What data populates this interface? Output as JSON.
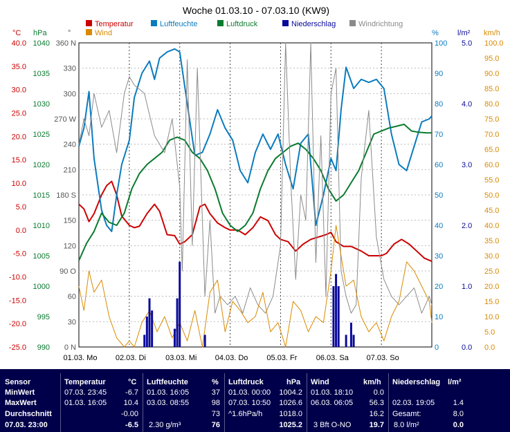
{
  "title": "Woche 01.03.10 - 07.03.10 (KW9)",
  "legend": [
    {
      "label": "Temperatur",
      "color": "#cc0000"
    },
    {
      "label": "Luftfeuchte",
      "color": "#0a7bbd"
    },
    {
      "label": "Luftdruck",
      "color": "#0a7a2e"
    },
    {
      "label": "Niederschlag",
      "color": "#0a0a99"
    },
    {
      "label": "Windrichtung",
      "color": "#8a8a8a"
    },
    {
      "label": "Wind",
      "color": "#d98a00"
    }
  ],
  "axis_units": {
    "temp": "°C",
    "pressure": "hPa",
    "direction": "°",
    "humidity": "%",
    "rain": "l/m²",
    "wind": "km/h"
  },
  "chart_data": {
    "type": "line",
    "title": "Woche 01.03.10 - 07.03.10 (KW9)",
    "x_ticks": [
      "01.03. Mo",
      "02.03. Di",
      "03.03. Mi",
      "04.03. Do",
      "05.03. Fr",
      "06.03. Sa",
      "07.03. So"
    ],
    "axes": {
      "temp": {
        "ticks": [
          "40.0",
          "35.0",
          "30.0",
          "25.0",
          "20.0",
          "15.0",
          "10.0",
          "5.0",
          "0.0",
          "-5.0",
          "-10.0",
          "-15.0",
          "-20.0",
          "-25.0"
        ],
        "ylim": [
          -25,
          40
        ]
      },
      "pressure": {
        "ticks": [
          "1040",
          "1035",
          "1030",
          "1025",
          "1020",
          "1015",
          "1010",
          "1005",
          "1000",
          "995",
          "990"
        ],
        "ylim": [
          990,
          1040
        ]
      },
      "direction": {
        "ticks": [
          "360 N",
          "330",
          "300",
          "270 W",
          "240",
          "210",
          "180 S",
          "150",
          "120",
          "90 O",
          "60",
          "30",
          "0 N"
        ],
        "ylim": [
          0,
          360
        ]
      },
      "humidity": {
        "ticks": [
          "100",
          "90",
          "80",
          "70",
          "60",
          "50",
          "40",
          "30",
          "20",
          "10",
          "0"
        ],
        "ylim": [
          0,
          100
        ]
      },
      "rain": {
        "ticks": [
          "5.0",
          "4.0",
          "3.0",
          "2.0",
          "1.0",
          "0.0"
        ],
        "ylim": [
          0,
          5
        ]
      },
      "wind": {
        "ticks": [
          "100.0",
          "95.0",
          "90.0",
          "85.0",
          "80.0",
          "75.0",
          "70.0",
          "65.0",
          "60.0",
          "55.0",
          "50.0",
          "45.0",
          "40.0",
          "35.0",
          "30.0",
          "25.0",
          "20.0",
          "15.0",
          "10.0",
          "5.0",
          "0.0"
        ],
        "ylim": [
          0,
          100
        ]
      }
    },
    "series": [
      {
        "name": "Temperatur",
        "axis": "temp",
        "color": "#cc0000",
        "x": [
          0,
          0.1,
          0.2,
          0.3,
          0.45,
          0.55,
          0.65,
          0.75,
          0.85,
          1.0,
          1.1,
          1.2,
          1.35,
          1.5,
          1.6,
          1.75,
          1.9,
          2.0,
          2.1,
          2.25,
          2.4,
          2.5,
          2.6,
          2.75,
          2.9,
          3.0,
          3.15,
          3.3,
          3.45,
          3.6,
          3.75,
          3.9,
          4.0,
          4.15,
          4.3,
          4.45,
          4.6,
          4.75,
          4.9,
          5.0,
          5.1,
          5.25,
          5.4,
          5.5,
          5.6,
          5.75,
          5.9,
          6.0,
          6.1,
          6.25,
          6.4,
          6.55,
          6.7,
          6.85,
          7.0
        ],
        "y": [
          5.5,
          4.5,
          1.8,
          3.5,
          7.5,
          9.5,
          10.4,
          7.5,
          3.0,
          1.0,
          0.5,
          0.8,
          3.5,
          5.5,
          4.0,
          -1.0,
          -1.2,
          -3.0,
          -2.5,
          -1.0,
          5.0,
          5.5,
          3.5,
          1.5,
          0.5,
          0.0,
          0.0,
          -1.0,
          0.5,
          2.8,
          2.0,
          -1.0,
          -2.0,
          -2.5,
          -4.5,
          -3.0,
          -2.0,
          -1.5,
          -1.0,
          -0.5,
          -2.5,
          -3.5,
          -3.5,
          -4.0,
          -4.5,
          -5.5,
          -5.5,
          -5.5,
          -5.0,
          -3.0,
          -2.0,
          -3.0,
          -4.5,
          -6.0,
          -6.7
        ]
      },
      {
        "name": "Luftfeuchte",
        "axis": "humidity",
        "color": "#0a7bbd",
        "x": [
          0,
          0.1,
          0.2,
          0.3,
          0.45,
          0.55,
          0.65,
          0.75,
          0.85,
          1.0,
          1.1,
          1.25,
          1.4,
          1.5,
          1.6,
          1.75,
          1.9,
          2.0,
          2.15,
          2.3,
          2.45,
          2.6,
          2.75,
          2.9,
          3.05,
          3.2,
          3.35,
          3.5,
          3.65,
          3.8,
          3.95,
          4.1,
          4.25,
          4.4,
          4.55,
          4.7,
          4.85,
          5.0,
          5.1,
          5.2,
          5.3,
          5.45,
          5.6,
          5.75,
          5.9,
          6.05,
          6.2,
          6.35,
          6.5,
          6.65,
          6.8,
          6.95,
          7.0
        ],
        "y": [
          66,
          72,
          84,
          62,
          45,
          40,
          38,
          50,
          60,
          68,
          82,
          90,
          94,
          88,
          95,
          97,
          98,
          97,
          80,
          63,
          64,
          70,
          78,
          72,
          68,
          58,
          54,
          64,
          70,
          65,
          70,
          60,
          52,
          67,
          70,
          40,
          50,
          62,
          58,
          78,
          92,
          85,
          88,
          87,
          88,
          85,
          70,
          60,
          58,
          66,
          74,
          75,
          76
        ]
      },
      {
        "name": "Luftdruck",
        "axis": "pressure",
        "color": "#0a7a2e",
        "x": [
          0,
          0.15,
          0.3,
          0.45,
          0.6,
          0.75,
          0.9,
          1.05,
          1.2,
          1.35,
          1.5,
          1.65,
          1.8,
          1.95,
          2.1,
          2.25,
          2.4,
          2.55,
          2.7,
          2.85,
          3.0,
          3.15,
          3.3,
          3.45,
          3.6,
          3.75,
          3.9,
          4.05,
          4.2,
          4.35,
          4.5,
          4.65,
          4.8,
          4.95,
          5.1,
          5.25,
          5.4,
          5.55,
          5.7,
          5.85,
          6.0,
          6.15,
          6.3,
          6.45,
          6.6,
          6.75,
          6.9,
          7.0
        ],
        "y": [
          1004.2,
          1007,
          1009,
          1012,
          1010.5,
          1010,
          1012,
          1016,
          1018.5,
          1020,
          1021,
          1022,
          1024,
          1024.5,
          1024,
          1022,
          1021,
          1019,
          1016,
          1012,
          1010,
          1009,
          1010,
          1012,
          1016,
          1019,
          1021,
          1022,
          1023,
          1023.5,
          1022.5,
          1021,
          1019,
          1016,
          1014,
          1015,
          1017,
          1019,
          1022,
          1025,
          1025.5,
          1026,
          1026.3,
          1026.6,
          1025.5,
          1025.3,
          1025.2,
          1025.2
        ]
      },
      {
        "name": "Windrichtung",
        "axis": "direction",
        "color": "#8a8a8a",
        "x": [
          0,
          0.1,
          0.2,
          0.3,
          0.45,
          0.6,
          0.75,
          0.9,
          1.0,
          1.1,
          1.3,
          1.5,
          1.7,
          1.85,
          2.0,
          2.05,
          2.15,
          2.25,
          2.35,
          2.5,
          2.6,
          2.7,
          2.8,
          2.95,
          3.1,
          3.25,
          3.4,
          3.55,
          3.7,
          3.85,
          4.0,
          4.1,
          4.2,
          4.3,
          4.4,
          4.5,
          4.6,
          4.7,
          4.8,
          4.9,
          5.0,
          5.1,
          5.2,
          5.3,
          5.4,
          5.5,
          5.6,
          5.75,
          5.9,
          6.05,
          6.2,
          6.35,
          6.5,
          6.65,
          6.8,
          6.95,
          7.0
        ],
        "y": [
          240,
          270,
          250,
          300,
          260,
          280,
          230,
          300,
          320,
          310,
          300,
          250,
          230,
          270,
          190,
          90,
          340,
          120,
          330,
          60,
          150,
          40,
          60,
          50,
          60,
          40,
          70,
          50,
          40,
          60,
          120,
          360,
          200,
          80,
          180,
          150,
          360,
          100,
          250,
          60,
          300,
          330,
          90,
          60,
          40,
          50,
          200,
          280,
          130,
          80,
          60,
          50,
          60,
          70,
          40,
          60,
          50
        ]
      },
      {
        "name": "Wind",
        "axis": "wind",
        "color": "#d98a00",
        "x": [
          0,
          0.1,
          0.2,
          0.3,
          0.45,
          0.6,
          0.75,
          0.9,
          1.0,
          1.1,
          1.25,
          1.4,
          1.55,
          1.7,
          1.85,
          2.0,
          2.15,
          2.3,
          2.45,
          2.6,
          2.75,
          2.9,
          3.05,
          3.2,
          3.35,
          3.5,
          3.65,
          3.8,
          3.95,
          4.1,
          4.25,
          4.4,
          4.55,
          4.7,
          4.85,
          5.0,
          5.1,
          5.2,
          5.3,
          5.45,
          5.6,
          5.75,
          5.9,
          6.05,
          6.2,
          6.35,
          6.5,
          6.65,
          6.8,
          6.95,
          7.0
        ],
        "y": [
          20,
          12,
          25,
          18,
          22,
          10,
          3,
          0,
          2,
          0,
          8,
          12,
          5,
          10,
          3,
          8,
          2,
          12,
          0,
          18,
          22,
          5,
          15,
          12,
          8,
          10,
          18,
          5,
          8,
          0,
          15,
          12,
          5,
          10,
          8,
          25,
          40,
          30,
          20,
          22,
          10,
          5,
          8,
          2,
          10,
          15,
          28,
          25,
          20,
          15,
          8
        ]
      },
      {
        "name": "Niederschlag",
        "axis": "rain",
        "color": "#0a0a99",
        "type": "bar",
        "x": [
          1.3,
          1.35,
          1.4,
          1.45,
          1.9,
          1.95,
          2.0,
          2.5,
          5.05,
          5.1,
          5.15,
          5.3,
          5.4,
          5.45
        ],
        "y": [
          0.2,
          0.5,
          0.8,
          0.6,
          0.3,
          0.8,
          1.4,
          0.2,
          1.0,
          1.2,
          1.0,
          0.2,
          0.4,
          0.2
        ]
      }
    ]
  },
  "table": {
    "headers": {
      "sensor": "Sensor",
      "temp": "Temperatur",
      "temp_unit": "°C",
      "hum": "Luftfeuchte",
      "hum_unit": "%",
      "press": "Luftdruck",
      "press_unit": "hPa",
      "wind": "Wind",
      "wind_unit": "km/h",
      "rain": "Niederschlag",
      "rain_unit": "l/m²"
    },
    "row_labels": {
      "min": "MinWert",
      "max": "MaxWert",
      "avg": "Durchschnitt",
      "cur": "07.03. 23:00"
    },
    "temp": {
      "min_time": "07.03. 23:45",
      "min": "-6.7",
      "max_time": "01.03. 16:05",
      "max": "10.4",
      "avg": "-0.00",
      "cur": "-6.5"
    },
    "hum": {
      "min_time": "01.03. 16:05",
      "min": "37",
      "max_time": "03.03. 08:55",
      "max": "98",
      "avg": "73",
      "abs": "2.30 g/m³",
      "cur": "76"
    },
    "press": {
      "min_time": "01.03. 00:00",
      "min": "1004.2",
      "max_time": "07.03. 10:50",
      "max": "1026.6",
      "trend": "^1.6hPa/h",
      "avg": "1018.0",
      "cur": "1025.2"
    },
    "wind": {
      "min_time": "01.03. 18:10",
      "min": "0.0",
      "max_time": "06.03. 06:05",
      "max": "56.3",
      "avg": "16.2",
      "dir": "3 Bft O-NO",
      "cur": "19.7"
    },
    "rain": {
      "row2_time": "02.03. 19:05",
      "row2": "1.4",
      "total_label": "Gesamt:",
      "total": "8.0",
      "period": "8.0 l/m²",
      "cur": "0.0"
    }
  }
}
